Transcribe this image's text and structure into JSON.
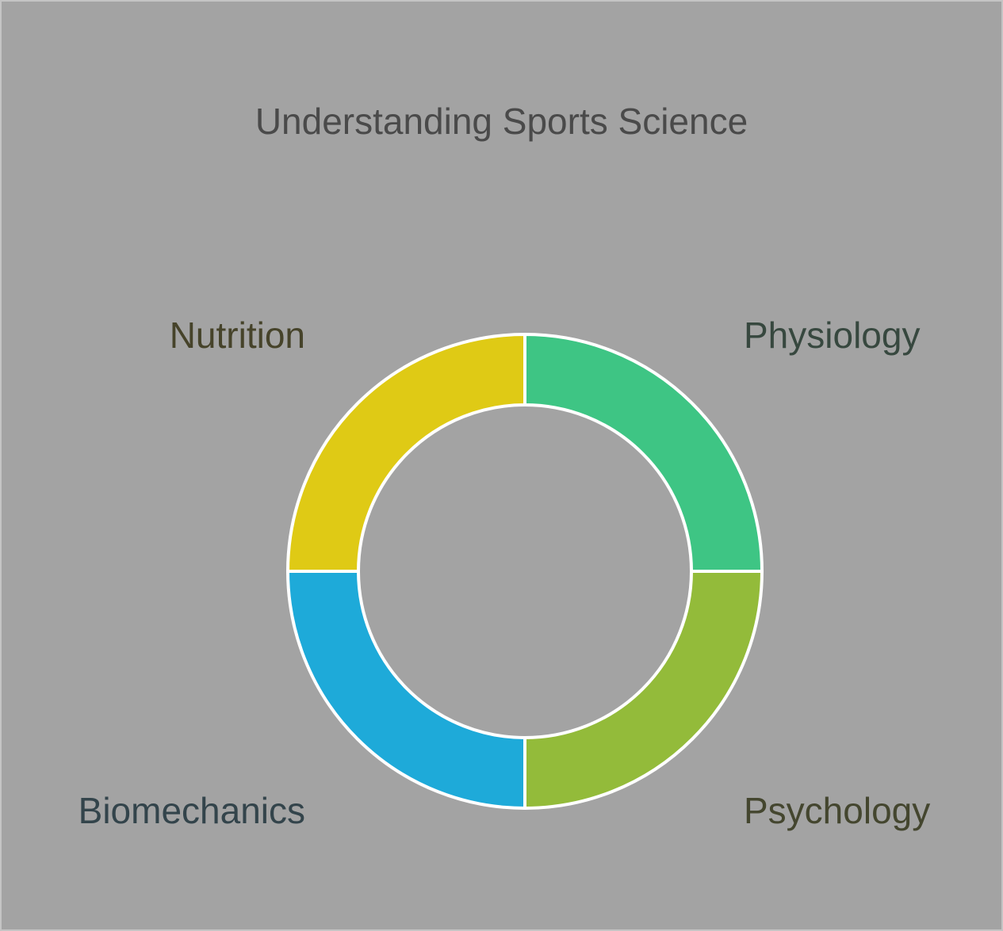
{
  "title": "Understanding Sports Science",
  "segments": [
    {
      "label": "Physiology",
      "color": "#3ec584",
      "text_color": "#37483f"
    },
    {
      "label": "Psychology",
      "color": "#93bb3a",
      "text_color": "#44462f"
    },
    {
      "label": "Biomechanics",
      "color": "#1eaad9",
      "text_color": "#33444b"
    },
    {
      "label": "Nutrition",
      "color": "#dfca15",
      "text_color": "#46432a"
    }
  ],
  "background": "#a3a3a3",
  "separator_color": "#ffffff"
}
